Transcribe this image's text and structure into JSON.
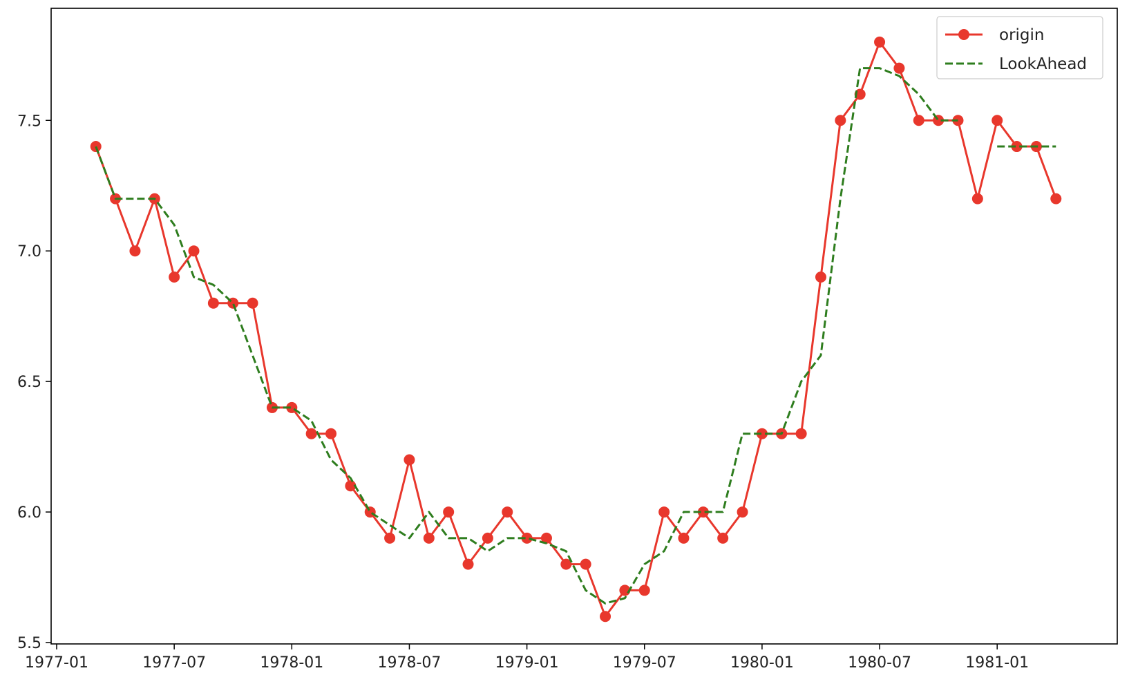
{
  "chart_data": {
    "type": "line",
    "title": "",
    "xlabel": "",
    "ylabel": "",
    "x_type": "date",
    "xlim": [
      "1977-01-01",
      "1981-06-01"
    ],
    "ylim": [
      5.5,
      7.85
    ],
    "x_ticks": [
      "1977-01",
      "1977-07",
      "1978-01",
      "1978-07",
      "1979-01",
      "1979-07",
      "1980-01",
      "1980-07",
      "1981-01"
    ],
    "y_ticks": [
      5.5,
      6.0,
      6.5,
      7.0,
      7.5
    ],
    "y_tick_labels": [
      "5.5",
      "6.0",
      "6.5",
      "7.0",
      "7.5"
    ],
    "grid": false,
    "legend_position": "top-right",
    "series": [
      {
        "name": "origin",
        "color": "#e8372c",
        "style": "solid",
        "marker": "circle",
        "points": [
          [
            "1977-03-01",
            7.4
          ],
          [
            "1977-04-01",
            7.2
          ],
          [
            "1977-05-01",
            7.0
          ],
          [
            "1977-06-01",
            7.2
          ],
          [
            "1977-07-01",
            6.9
          ],
          [
            "1977-08-01",
            7.0
          ],
          [
            "1977-09-01",
            6.8
          ],
          [
            "1977-10-01",
            6.8
          ],
          [
            "1977-11-01",
            6.8
          ],
          [
            "1977-12-01",
            6.4
          ],
          [
            "1978-01-01",
            6.4
          ],
          [
            "1978-02-01",
            6.3
          ],
          [
            "1978-03-01",
            6.3
          ],
          [
            "1978-04-01",
            6.1
          ],
          [
            "1978-05-01",
            6.0
          ],
          [
            "1978-06-01",
            5.9
          ],
          [
            "1978-07-01",
            6.2
          ],
          [
            "1978-08-01",
            5.9
          ],
          [
            "1978-09-01",
            6.0
          ],
          [
            "1978-10-01",
            5.8
          ],
          [
            "1978-11-01",
            5.9
          ],
          [
            "1978-12-01",
            6.0
          ],
          [
            "1979-01-01",
            5.9
          ],
          [
            "1979-02-01",
            5.9
          ],
          [
            "1979-03-01",
            5.8
          ],
          [
            "1979-04-01",
            5.8
          ],
          [
            "1979-05-01",
            5.6
          ],
          [
            "1979-06-01",
            5.7
          ],
          [
            "1979-07-01",
            5.7
          ],
          [
            "1979-08-01",
            6.0
          ],
          [
            "1979-09-01",
            5.9
          ],
          [
            "1979-10-01",
            6.0
          ],
          [
            "1979-11-01",
            5.9
          ],
          [
            "1979-12-01",
            6.0
          ],
          [
            "1980-01-01",
            6.3
          ],
          [
            "1980-02-01",
            6.3
          ],
          [
            "1980-03-01",
            6.3
          ],
          [
            "1980-04-01",
            6.9
          ],
          [
            "1980-05-01",
            7.5
          ],
          [
            "1980-06-01",
            7.6
          ],
          [
            "1980-07-01",
            7.8
          ],
          [
            "1980-08-01",
            7.7
          ],
          [
            "1980-09-01",
            7.5
          ],
          [
            "1980-10-01",
            7.5
          ],
          [
            "1980-11-01",
            7.5
          ],
          [
            "1980-12-01",
            7.2
          ],
          [
            "1981-01-01",
            7.5
          ],
          [
            "1981-02-01",
            7.4
          ],
          [
            "1981-03-01",
            7.4
          ],
          [
            "1981-04-01",
            7.2
          ]
        ]
      },
      {
        "name": "LookAhead",
        "color": "#2e7d1e",
        "style": "dashed",
        "marker": "none",
        "points": [
          [
            "1977-03-01",
            7.4
          ],
          [
            "1977-04-01",
            7.2
          ],
          [
            "1977-05-01",
            7.2
          ],
          [
            "1977-06-01",
            7.2
          ],
          [
            "1977-07-01",
            7.1
          ],
          [
            "1977-08-01",
            6.9
          ],
          [
            "1977-09-01",
            6.87
          ],
          [
            "1977-10-01",
            6.8
          ],
          [
            "1977-11-01",
            6.6
          ],
          [
            "1977-12-01",
            6.4
          ],
          [
            "1978-01-01",
            6.4
          ],
          [
            "1978-02-01",
            6.35
          ],
          [
            "1978-03-01",
            6.2
          ],
          [
            "1978-04-01",
            6.13
          ],
          [
            "1978-05-01",
            6.0
          ],
          [
            "1978-06-01",
            5.95
          ],
          [
            "1978-07-01",
            5.9
          ],
          [
            "1978-08-01",
            6.0
          ],
          [
            "1978-09-01",
            5.9
          ],
          [
            "1978-10-01",
            5.9
          ],
          [
            "1978-11-01",
            5.85
          ],
          [
            "1978-12-01",
            5.9
          ],
          [
            "1979-01-01",
            5.9
          ],
          [
            "1979-02-01",
            5.88
          ],
          [
            "1979-03-01",
            5.85
          ],
          [
            "1979-04-01",
            5.7
          ],
          [
            "1979-05-01",
            5.65
          ],
          [
            "1979-06-01",
            5.67
          ],
          [
            "1979-07-01",
            5.8
          ],
          [
            "1979-08-01",
            5.85
          ],
          [
            "1979-09-01",
            6.0
          ],
          [
            "1979-10-01",
            6.0
          ],
          [
            "1979-11-01",
            6.0
          ],
          [
            "1979-12-01",
            6.3
          ],
          [
            "1980-01-01",
            6.3
          ],
          [
            "1980-02-01",
            6.3
          ],
          [
            "1980-03-01",
            6.5
          ],
          [
            "1980-04-01",
            6.6
          ],
          [
            "1980-05-01",
            7.2
          ],
          [
            "1980-06-01",
            7.7
          ],
          [
            "1980-07-01",
            7.7
          ],
          [
            "1980-08-01",
            7.67
          ],
          [
            "1980-09-01",
            7.6
          ],
          [
            "1980-10-01",
            7.5
          ],
          [
            "1980-11-01",
            7.5
          ],
          [
            "1980-12-01",
            null
          ],
          [
            "1981-01-01",
            7.4
          ],
          [
            "1981-02-01",
            7.4
          ],
          [
            "1981-03-01",
            7.4
          ],
          [
            "1981-04-01",
            7.4
          ]
        ]
      }
    ]
  }
}
